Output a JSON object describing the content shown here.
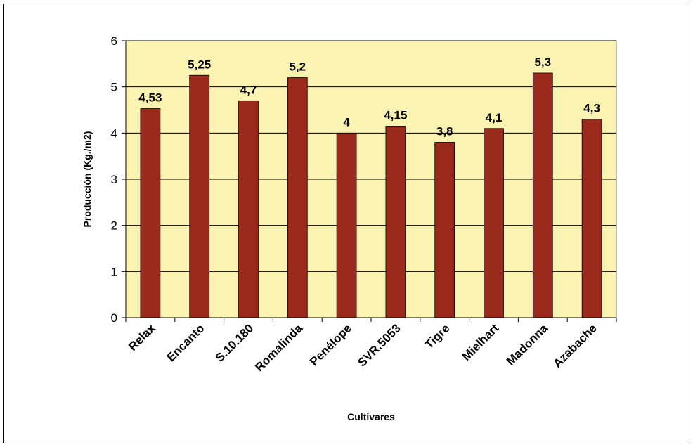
{
  "chart_data": {
    "type": "bar",
    "title": "",
    "xlabel": "Cultivares",
    "ylabel": "Producción (Kg./m2)",
    "ylim": [
      0,
      6
    ],
    "yticks": [
      "0",
      "1",
      "2",
      "3",
      "4",
      "5",
      "6"
    ],
    "grid": true,
    "legend": "none",
    "categories": [
      "Relax",
      "Encanto",
      "S.10.180",
      "Romalinda",
      "Penélope",
      "SVR.5053",
      "Tigre",
      "Mielhart",
      "Madonna",
      "Azabache"
    ],
    "values": [
      4.53,
      5.25,
      4.7,
      5.2,
      4.0,
      4.15,
      3.8,
      4.1,
      5.3,
      4.3
    ],
    "data_labels": [
      "4,53",
      "5,25",
      "4,7",
      "5,2",
      "4",
      "4,15",
      "3,8",
      "4,1",
      "5,3",
      "4,3"
    ],
    "colors": {
      "bar": "#99291a",
      "plot_background": "#fbf3b1",
      "gridline": "#000000"
    }
  }
}
